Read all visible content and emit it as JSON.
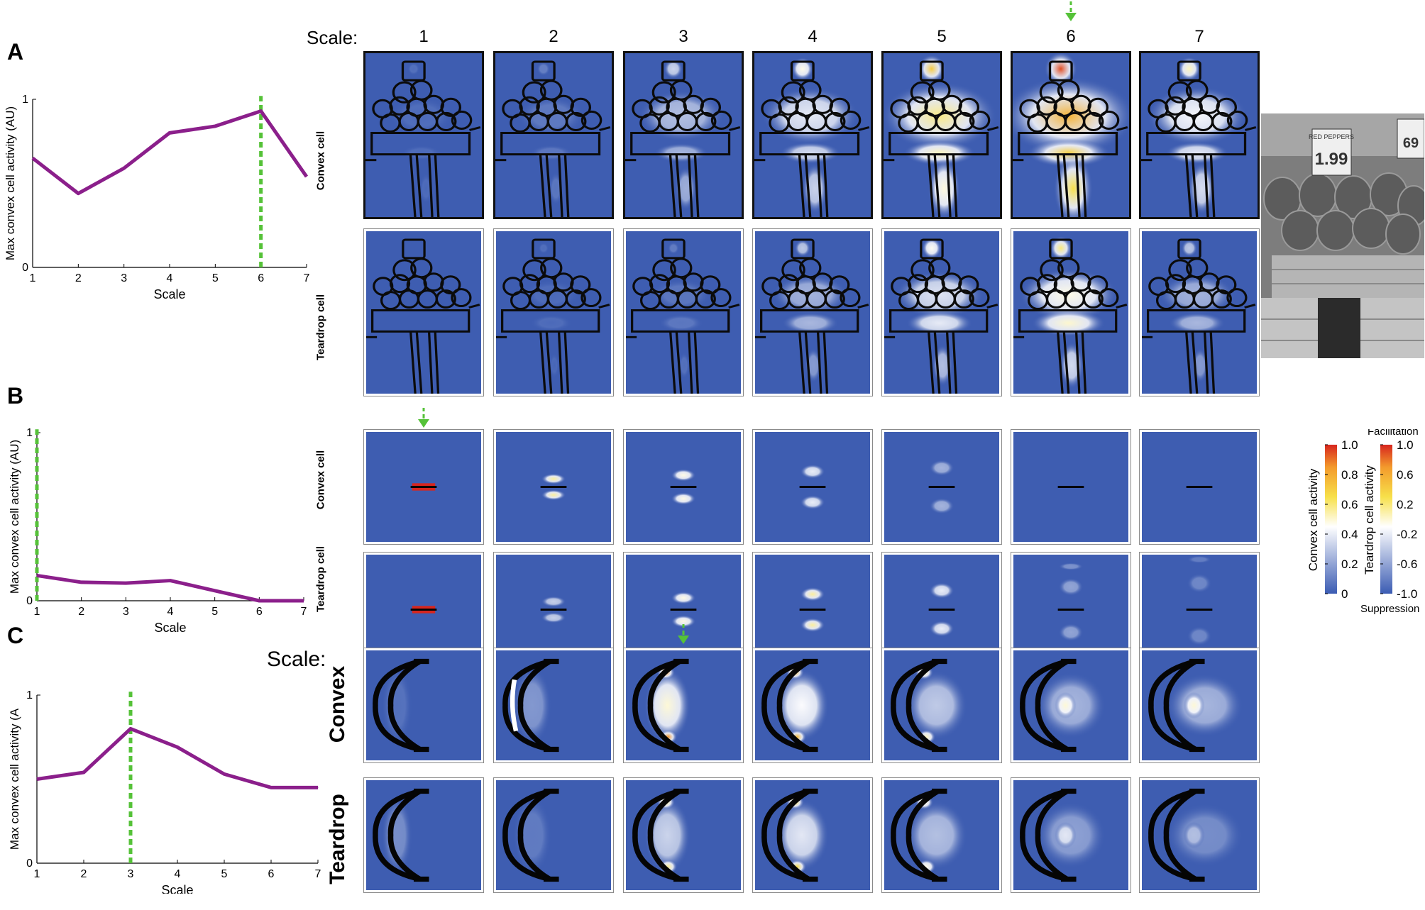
{
  "panels": {
    "A": {
      "letter": "A"
    },
    "B": {
      "letter": "B"
    },
    "C": {
      "letter": "C"
    }
  },
  "scale_header": "Scale:",
  "scale_header_c": "Scale:",
  "scales": [
    "1",
    "2",
    "3",
    "4",
    "5",
    "6",
    "7"
  ],
  "rows": {
    "A": {
      "convex": "Convex cell",
      "teardrop": "Teardrop cell"
    },
    "B": {
      "convex": "Convex cell",
      "teardrop": "Teardrop cell"
    },
    "C": {
      "convex": "Convex",
      "teardrop": "Teardrop"
    }
  },
  "colorbars": {
    "convex": {
      "label": "Convex cell activity",
      "ticks": [
        "1.0",
        "0.8",
        "0.6",
        "0.4",
        "0.2",
        "0"
      ]
    },
    "teardrop": {
      "label": "Teardrop cell activity",
      "top": "Facilitation",
      "bottom": "Suppression",
      "ticks": [
        "1.0",
        "0.6",
        "0.2",
        "-0.2",
        "-0.6",
        "-1.0"
      ]
    },
    "colors": {
      "low": "#3b5cb3",
      "mid": "#ffffff",
      "high1": "#f7e04a",
      "high2": "#f39a2c",
      "top": "#d7261e"
    }
  },
  "colors": {
    "line": "#8b1f8b",
    "marker": "#55c238",
    "background": "#3e5db1"
  },
  "chart_data": [
    {
      "type": "line",
      "panel": "A",
      "xlabel": "Scale",
      "ylabel": "Max convex cell activity (AU)",
      "x": [
        1,
        2,
        3,
        4,
        5,
        6,
        7
      ],
      "y": [
        0.65,
        0.44,
        0.59,
        0.8,
        0.84,
        0.93,
        0.54
      ],
      "xlim": [
        1,
        7
      ],
      "ylim": [
        0,
        1
      ],
      "xticks": [
        "1",
        "2",
        "3",
        "4",
        "5",
        "6",
        "7"
      ],
      "yticks": [
        "0",
        "1"
      ],
      "marker_x": 6
    },
    {
      "type": "line",
      "panel": "B",
      "xlabel": "Scale",
      "ylabel": "Max convex cell activity (AU)",
      "x": [
        1,
        2,
        3,
        4,
        5,
        6,
        7
      ],
      "y": [
        0.15,
        0.11,
        0.105,
        0.12,
        0.06,
        0.0,
        0.0
      ],
      "xlim": [
        1,
        7
      ],
      "ylim": [
        0,
        1
      ],
      "xticks": [
        "1",
        "2",
        "3",
        "4",
        "5",
        "6",
        "7"
      ],
      "yticks": [
        "0",
        "1"
      ],
      "marker_x": 1
    },
    {
      "type": "line",
      "panel": "C",
      "xlabel": "Scale",
      "ylabel": "Max convex cell activity (A",
      "x": [
        1,
        2,
        3,
        4,
        5,
        6,
        7
      ],
      "y": [
        0.5,
        0.54,
        0.8,
        0.69,
        0.53,
        0.45,
        0.45
      ],
      "xlim": [
        1,
        7
      ],
      "ylim": [
        0,
        1
      ],
      "xticks": [
        "1",
        "2",
        "3",
        "4",
        "5",
        "6",
        "7"
      ],
      "yticks": [
        "0",
        "1"
      ],
      "marker_x": 3
    }
  ],
  "heatmap_scales": {
    "A_convex": [
      0.05,
      0.1,
      0.35,
      0.5,
      0.75,
      1.0,
      0.55
    ],
    "A_teardrop": [
      0.0,
      0.05,
      0.1,
      0.35,
      0.55,
      0.7,
      0.35
    ],
    "B_convex": [
      1.0,
      0.7,
      0.6,
      0.5,
      0.3,
      0.0,
      0.0
    ],
    "B_teardrop": [
      1.0,
      0.4,
      0.6,
      0.7,
      0.5,
      0.25,
      0.15
    ],
    "C_convex": [
      0.1,
      0.3,
      0.9,
      0.8,
      0.55,
      0.45,
      0.45
    ],
    "C_teardrop": [
      0.25,
      0.15,
      0.6,
      0.7,
      0.5,
      0.35,
      0.25
    ]
  },
  "photo": {
    "sign1": "RED PEPPERS",
    "price1": "1.99",
    "price2": "69"
  }
}
